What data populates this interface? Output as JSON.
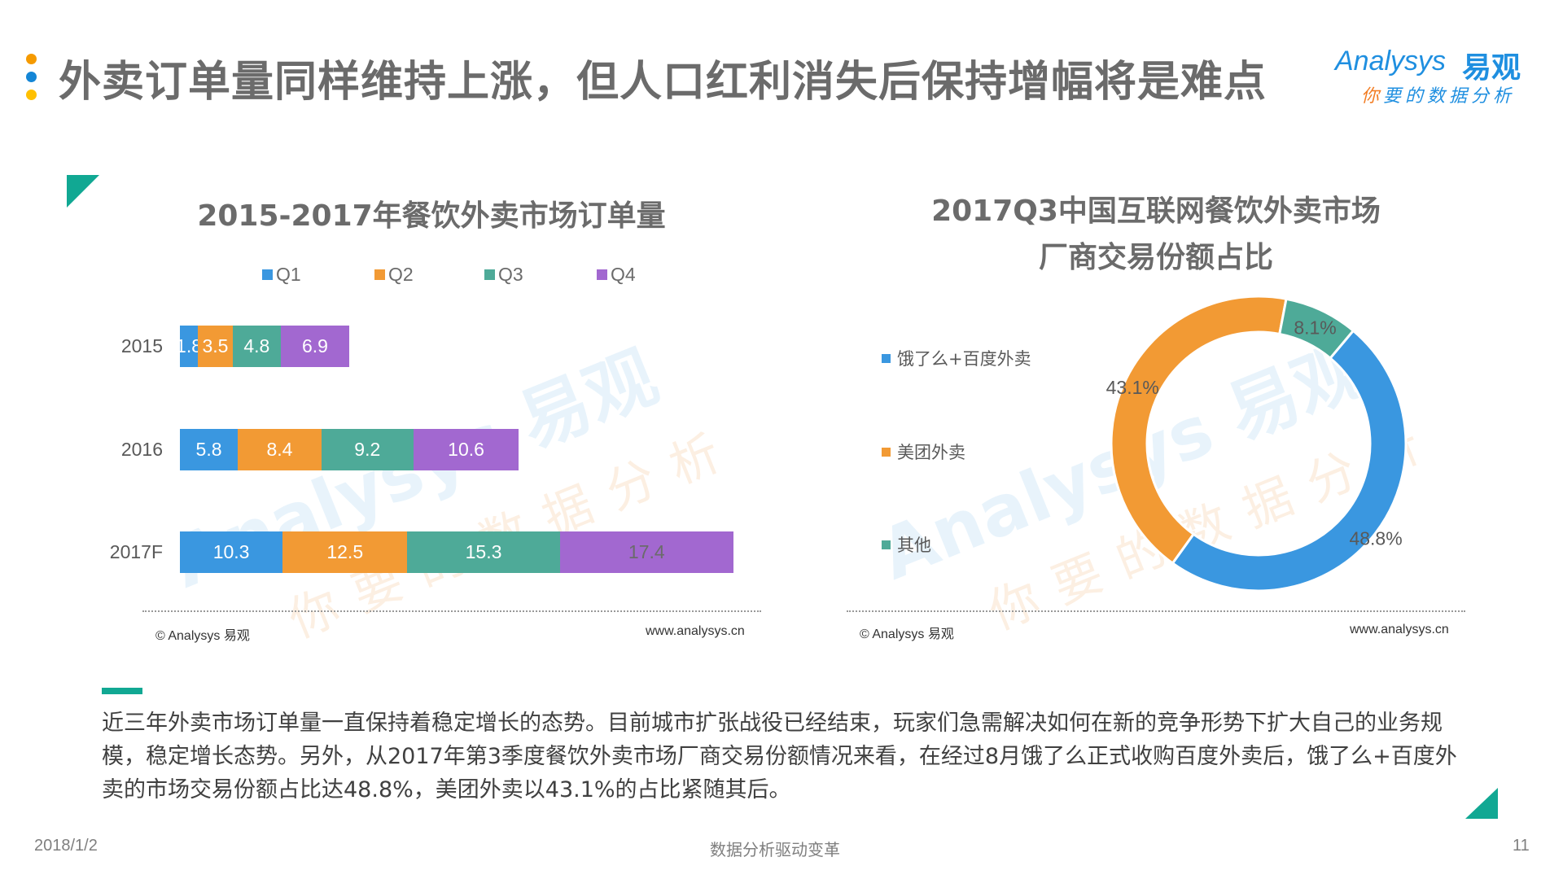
{
  "header": {
    "title": "外卖订单量同样维持上涨，但人口红利消失后保持增幅将是难点",
    "dots": [
      "#f59a00",
      "#1486d6",
      "#ffc000"
    ]
  },
  "logo": {
    "en": "Analysys",
    "cn": "易观",
    "slogan_first": "你",
    "slogan_rest": "要的数据分析"
  },
  "watermark": {
    "en": "Analysys 易观",
    "slogan": "你要的数据分析"
  },
  "left_chart": {
    "title": "2015-2017年餐饮外卖市场订单量",
    "source": "© Analysys 易观",
    "url": "www.analysys.cn"
  },
  "right_chart": {
    "title_line1": "2017Q3中国互联网餐饮外卖市场",
    "title_line2": "厂商交易份额占比",
    "source": "© Analysys 易观",
    "url": "www.analysys.cn"
  },
  "chart_data": [
    {
      "type": "bar",
      "orientation": "horizontal",
      "stacked": true,
      "title": "2015-2017年餐饮外卖市场订单量",
      "categories": [
        "2015",
        "2016",
        "2017F"
      ],
      "series": [
        {
          "name": "Q1",
          "color": "#3a97e0",
          "values": [
            1.8,
            5.8,
            10.3
          ]
        },
        {
          "name": "Q2",
          "color": "#f29a34",
          "values": [
            3.5,
            8.4,
            12.5
          ]
        },
        {
          "name": "Q3",
          "color": "#4eaa98",
          "values": [
            4.8,
            9.2,
            15.3
          ]
        },
        {
          "name": "Q4",
          "color": "#a268d0",
          "values": [
            6.9,
            10.6,
            17.4
          ]
        }
      ],
      "labels": {
        "2015": [
          "1.8",
          "3.5",
          "4.8",
          "6.9"
        ],
        "2016": [
          "5.8",
          "8.4",
          "9.2",
          "10.6"
        ],
        "2017F": [
          "10.3",
          "12.5",
          "15.3",
          "17.4"
        ]
      },
      "legend_position": "top",
      "grid": false,
      "xlabel": "",
      "ylabel": ""
    },
    {
      "type": "pie",
      "donut": true,
      "title": "2017Q3中国互联网餐饮外卖市场厂商交易份额占比",
      "categories": [
        "饿了么+百度外卖",
        "美团外卖",
        "其他"
      ],
      "values": [
        48.8,
        43.1,
        8.1
      ],
      "labels": [
        "48.8%",
        "43.1%",
        "8.1%"
      ],
      "colors": [
        "#3a97e0",
        "#f29a34",
        "#4eaa98"
      ],
      "legend_position": "left"
    }
  ],
  "summary": {
    "text": "近三年外卖市场订单量一直保持着稳定增长的态势。目前城市扩张战役已经结束，玩家们急需解决如何在新的竞争形势下扩大自己的业务规模，稳定增长态势。另外，从2017年第3季度餐饮外卖市场厂商交易份额情况来看，在经过8月饿了么正式收购百度外卖后，饿了么+百度外卖的市场交易份额占比达48.8%，美团外卖以43.1%的占比紧随其后。"
  },
  "footer": {
    "date": "2018/1/2",
    "center": "数据分析驱动变革",
    "page": "11"
  }
}
